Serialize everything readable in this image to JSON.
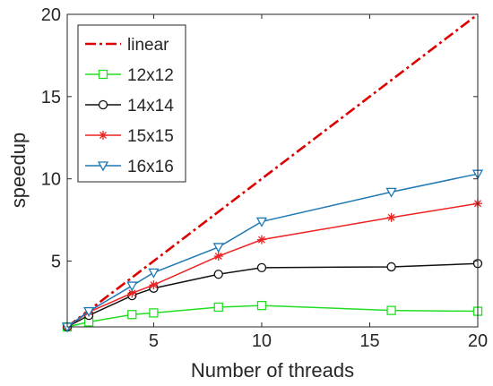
{
  "chart_data": {
    "type": "line",
    "xlabel": "Number of threads",
    "ylabel": "speedup",
    "xlim": [
      1,
      20
    ],
    "ylim": [
      1,
      20
    ],
    "xticks": [
      5,
      10,
      15,
      20
    ],
    "yticks": [
      5,
      10,
      15,
      20
    ],
    "grid": false,
    "legend_position": "top-left",
    "series": [
      {
        "name": "linear",
        "color": "#dd0000",
        "marker": "none",
        "style": "dash-dot",
        "x": [
          1,
          20
        ],
        "y": [
          1,
          20
        ]
      },
      {
        "name": "12x12",
        "color": "#22dd22",
        "marker": "square",
        "x": [
          1,
          2,
          4,
          5,
          8,
          10,
          16,
          20
        ],
        "y": [
          1.0,
          1.3,
          1.75,
          1.85,
          2.2,
          2.3,
          2.0,
          1.95
        ]
      },
      {
        "name": "14x14",
        "color": "#111111",
        "marker": "circle",
        "x": [
          1,
          2,
          4,
          5,
          8,
          10,
          16,
          20
        ],
        "y": [
          1.0,
          1.7,
          2.9,
          3.35,
          4.2,
          4.6,
          4.65,
          4.85
        ]
      },
      {
        "name": "15x15",
        "color": "#ee2222",
        "marker": "star",
        "x": [
          1,
          2,
          4,
          5,
          8,
          10,
          16,
          20
        ],
        "y": [
          1.0,
          1.9,
          3.05,
          3.55,
          5.3,
          6.3,
          7.65,
          8.5
        ]
      },
      {
        "name": "16x16",
        "color": "#1f77b4",
        "marker": "triangle-down",
        "x": [
          1,
          2,
          4,
          5,
          8,
          10,
          16,
          20
        ],
        "y": [
          1.0,
          1.95,
          3.5,
          4.3,
          5.85,
          7.4,
          9.2,
          10.3
        ]
      }
    ]
  }
}
